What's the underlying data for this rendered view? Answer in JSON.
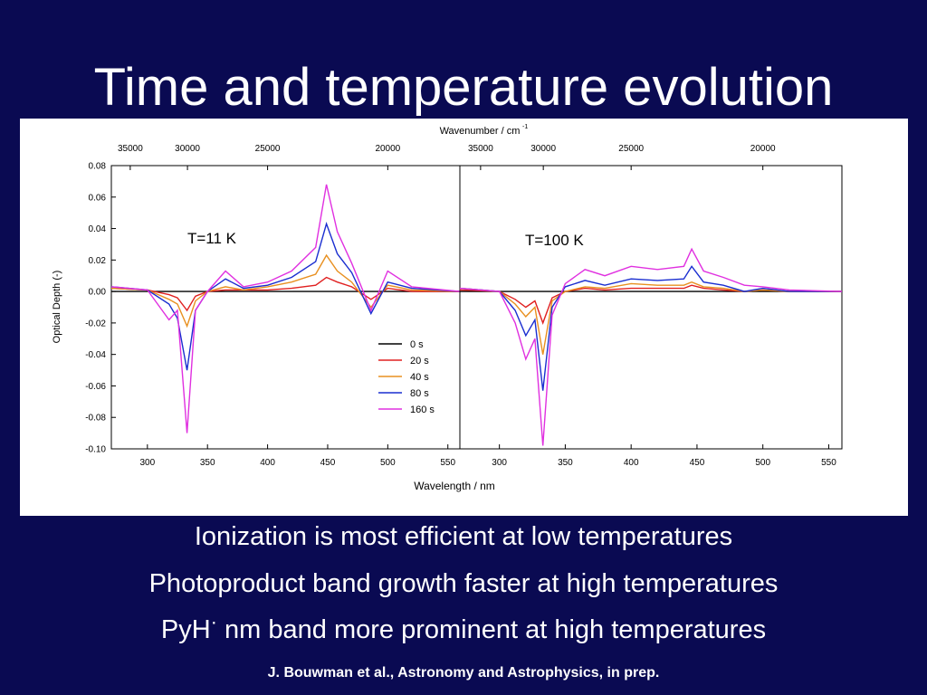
{
  "slide": {
    "title": "Time and temperature evolution",
    "bullets": [
      "Ionization is most efficient at low temperatures",
      "Photoproduct band growth faster at high temperatures",
      {
        "prefix": "PyH",
        "dot": "·",
        "suffix": " nm band more prominent at high temperatures"
      }
    ],
    "citation": "J. Bouwman et al., Astronomy and Astrophysics, in prep."
  },
  "chart_data": {
    "type": "line",
    "xlabel": "Wavelength / nm",
    "x2label": "Wavenumber / cm",
    "x2label_sup": "-1",
    "ylabel": "Optical Depth (-)",
    "ylim": [
      -0.1,
      0.08
    ],
    "yticks": [
      "0.08",
      "0.06",
      "0.04",
      "0.02",
      "0.00",
      "-0.02",
      "-0.04",
      "-0.06",
      "-0.08",
      "-0.10"
    ],
    "legend_position": "bottom-right of left panel",
    "colors": {
      "0 s": "#000000",
      "20 s": "#e02020",
      "40 s": "#e89020",
      "80 s": "#1a2ed0",
      "160 s": "#e030e0"
    },
    "panels": [
      {
        "label": "T=11 K",
        "xlim": [
          270,
          560
        ],
        "xticks": [
          "300",
          "350",
          "400",
          "450",
          "500",
          "550"
        ],
        "x2ticks": [
          "35000",
          "30000",
          "25000",
          "20000"
        ],
        "series": [
          {
            "name": "0 s",
            "x": [
              270,
              300,
              320,
              333,
              345,
              365,
              400,
              449,
              486,
              520,
              560
            ],
            "y": [
              0.0,
              0.0,
              0.0,
              0.0,
              0.0,
              0.0,
              0.0,
              0.0,
              0.0,
              0.0,
              0.0
            ]
          },
          {
            "name": "20 s",
            "x": [
              270,
              300,
              318,
              325,
              333,
              340,
              350,
              365,
              380,
              400,
              420,
              440,
              449,
              458,
              470,
              486,
              500,
              520,
              560
            ],
            "y": [
              0.002,
              0.001,
              -0.002,
              -0.004,
              -0.012,
              -0.003,
              0.0,
              0.001,
              0.001,
              0.001,
              0.002,
              0.004,
              0.009,
              0.006,
              0.003,
              -0.005,
              0.002,
              0.0,
              0.0
            ]
          },
          {
            "name": "40 s",
            "x": [
              270,
              300,
              318,
              325,
              333,
              340,
              350,
              365,
              380,
              400,
              420,
              440,
              449,
              458,
              470,
              486,
              500,
              520,
              560
            ],
            "y": [
              0.002,
              0.001,
              -0.005,
              -0.008,
              -0.022,
              -0.006,
              0.0,
              0.003,
              0.001,
              0.003,
              0.006,
              0.011,
              0.023,
              0.013,
              0.006,
              -0.01,
              0.004,
              0.001,
              0.0
            ]
          },
          {
            "name": "80 s",
            "x": [
              270,
              300,
              318,
              325,
              333,
              340,
              350,
              365,
              380,
              400,
              420,
              440,
              449,
              458,
              470,
              486,
              500,
              520,
              560
            ],
            "y": [
              0.003,
              0.001,
              -0.008,
              -0.017,
              -0.05,
              -0.012,
              0.0,
              0.008,
              0.002,
              0.004,
              0.009,
              0.019,
              0.043,
              0.024,
              0.012,
              -0.014,
              0.006,
              0.002,
              0.0
            ]
          },
          {
            "name": "160 s",
            "x": [
              270,
              300,
              318,
              325,
              333,
              340,
              350,
              365,
              380,
              400,
              420,
              440,
              449,
              458,
              470,
              486,
              500,
              520,
              560
            ],
            "y": [
              0.003,
              0.001,
              -0.018,
              -0.012,
              -0.09,
              -0.012,
              0.0,
              0.013,
              0.003,
              0.006,
              0.013,
              0.028,
              0.068,
              0.038,
              0.018,
              -0.012,
              0.013,
              0.003,
              0.0
            ]
          }
        ]
      },
      {
        "label": "T=100 K",
        "xlim": [
          270,
          560
        ],
        "xticks": [
          "300",
          "350",
          "400",
          "450",
          "500",
          "550"
        ],
        "x2ticks": [
          "35000",
          "30000",
          "25000",
          "20000"
        ],
        "series": [
          {
            "name": "0 s",
            "x": [
              270,
              300,
              320,
              333,
              350,
              400,
              450,
              500,
              560
            ],
            "y": [
              0.0,
              0.0,
              0.0,
              0.0,
              0.0,
              0.0,
              0.0,
              0.0,
              0.0
            ]
          },
          {
            "name": "20 s",
            "x": [
              270,
              300,
              312,
              320,
              327,
              333,
              340,
              350,
              365,
              380,
              400,
              420,
              440,
              446,
              455,
              470,
              486,
              500,
              520,
              560
            ],
            "y": [
              0.001,
              0.0,
              -0.005,
              -0.01,
              -0.006,
              -0.02,
              -0.004,
              0.0,
              0.002,
              0.001,
              0.002,
              0.002,
              0.002,
              0.004,
              0.002,
              0.001,
              0.0,
              0.001,
              0.0,
              0.0
            ]
          },
          {
            "name": "40 s",
            "x": [
              270,
              300,
              312,
              320,
              327,
              333,
              340,
              350,
              365,
              380,
              400,
              420,
              440,
              446,
              455,
              470,
              486,
              500,
              520,
              560
            ],
            "y": [
              0.002,
              0.0,
              -0.008,
              -0.016,
              -0.01,
              -0.04,
              -0.006,
              0.0,
              0.003,
              0.002,
              0.005,
              0.004,
              0.004,
              0.006,
              0.003,
              0.002,
              0.0,
              0.001,
              0.0,
              0.0
            ]
          },
          {
            "name": "80 s",
            "x": [
              270,
              300,
              312,
              320,
              327,
              333,
              340,
              350,
              365,
              380,
              400,
              420,
              440,
              446,
              455,
              470,
              486,
              500,
              520,
              560
            ],
            "y": [
              0.002,
              0.0,
              -0.012,
              -0.028,
              -0.018,
              -0.063,
              -0.01,
              0.003,
              0.007,
              0.004,
              0.008,
              0.007,
              0.008,
              0.016,
              0.006,
              0.004,
              0.0,
              0.002,
              0.0,
              0.0
            ]
          },
          {
            "name": "160 s",
            "x": [
              270,
              300,
              312,
              320,
              327,
              333,
              340,
              350,
              365,
              380,
              400,
              420,
              440,
              446,
              455,
              470,
              486,
              500,
              520,
              560
            ],
            "y": [
              0.002,
              0.0,
              -0.02,
              -0.043,
              -0.03,
              -0.098,
              -0.015,
              0.005,
              0.014,
              0.01,
              0.016,
              0.014,
              0.016,
              0.027,
              0.013,
              0.009,
              0.004,
              0.003,
              0.001,
              0.0
            ]
          }
        ]
      }
    ]
  }
}
